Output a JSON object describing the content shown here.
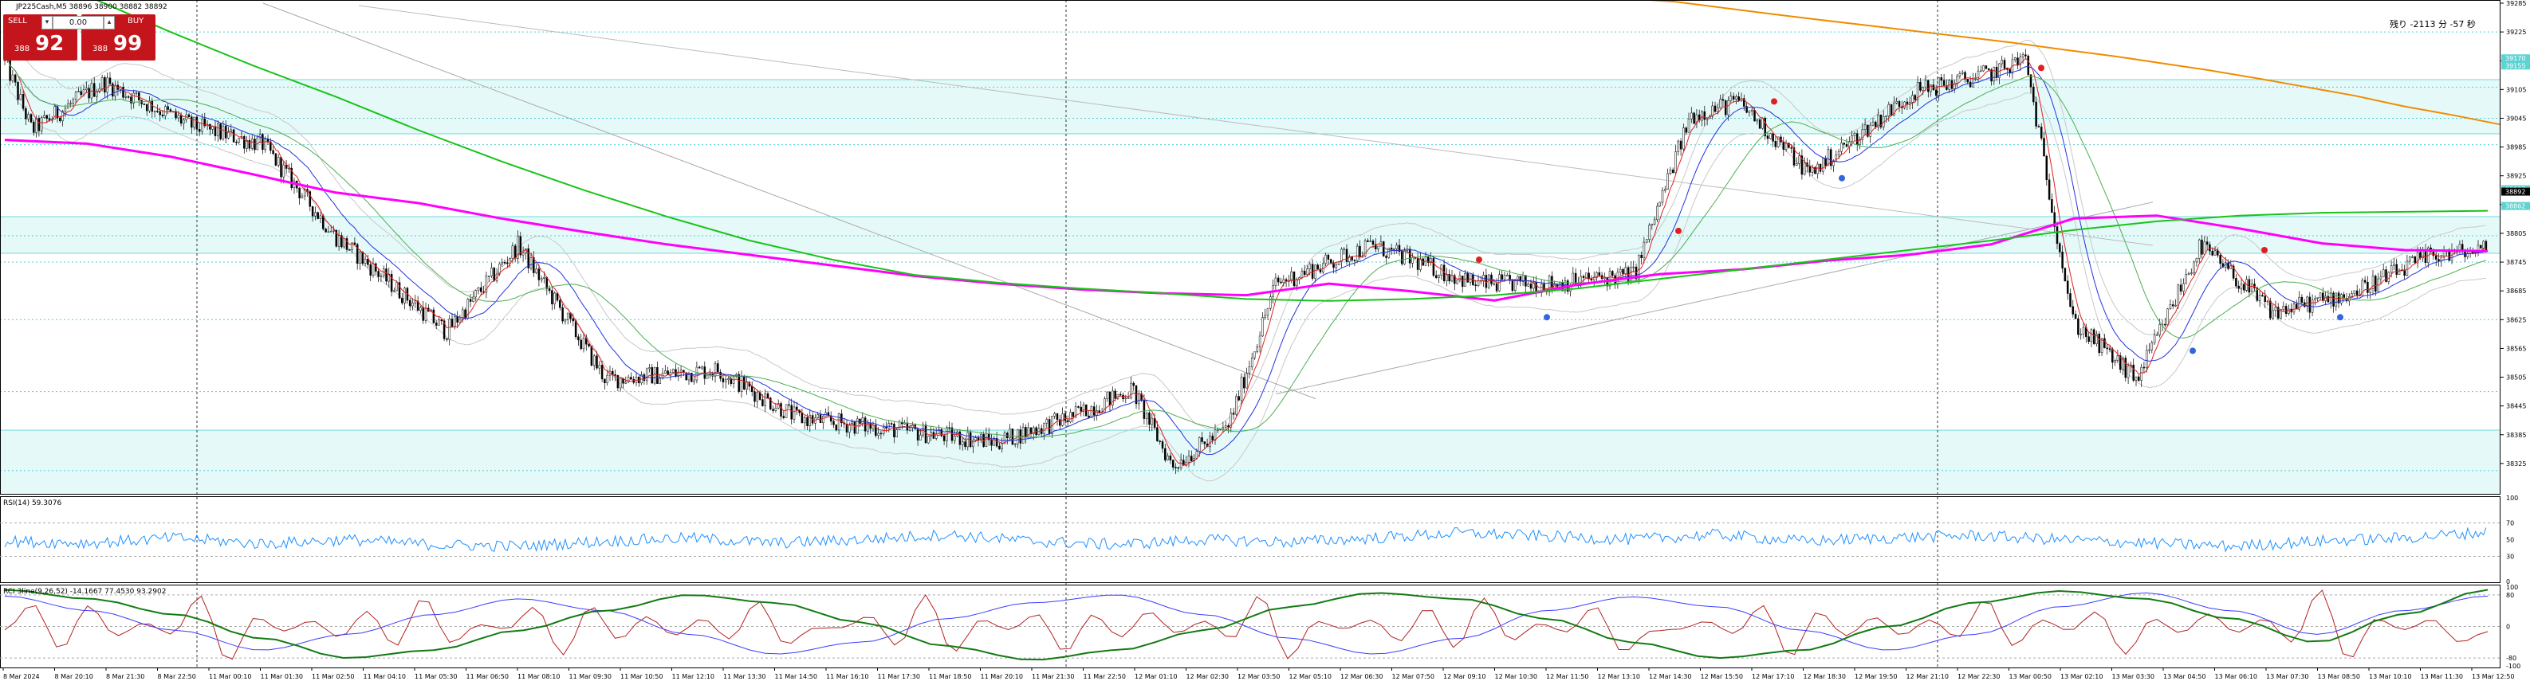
{
  "header": {
    "symbol_info": "JP225Cash,M5  38896 38900 38882 38892",
    "countdown": "残り -2113 分 -57 秒"
  },
  "trade_panel": {
    "sell_label": "SELL",
    "buy_label": "BUY",
    "lot": "0.00",
    "sell_prefix": "388",
    "sell_big": "92",
    "buy_prefix": "388",
    "buy_big": "99",
    "arrow_down": "▾",
    "arrow_up": "▴"
  },
  "chart_data": [
    {
      "type": "line",
      "title": "JP225Cash,M5  38896 38900 38882 38892",
      "panel": "price",
      "ylim": [
        38265,
        39285
      ],
      "y_ticks": [
        39285,
        39225,
        39165,
        39105,
        39045,
        38985,
        38925,
        38865,
        38805,
        38745,
        38685,
        38625,
        38565,
        38505,
        38445,
        38385,
        38325
      ],
      "last_price": 38892,
      "highlighted_levels": [
        39170,
        39155,
        38897,
        38862
      ],
      "grid": false,
      "series": [
        {
          "color": "#ff00ff",
          "values": [
            39000,
            38992,
            38965,
            38928,
            38890,
            38868,
            38836,
            38808,
            38782,
            38760,
            38738,
            38716,
            38700,
            38688,
            38680,
            38676,
            38700,
            38684,
            38665,
            38698,
            38720,
            38730,
            38748,
            38760,
            38782,
            38836,
            38842,
            38815,
            38784,
            38770,
            38768
          ]
        },
        {
          "color": "#18c318",
          "values": [
            39380,
            39300,
            39225,
            39155,
            39090,
            39020,
            38955,
            38895,
            38840,
            38790,
            38750,
            38718,
            38702,
            38690,
            38680,
            38668,
            38664,
            38668,
            38676,
            38690,
            38710,
            38730,
            38750,
            38770,
            38790,
            38812,
            38830,
            38842,
            38848,
            38850,
            38852
          ]
        },
        {
          "color": "#f08c00",
          "values": [
            39300,
            39295,
            39288,
            39275,
            39262,
            39250,
            39238,
            39226,
            39214,
            39202,
            39188,
            39175,
            39160,
            39145,
            39128,
            39110,
            39092,
            39070,
            39052,
            39032
          ]
        }
      ]
    },
    {
      "type": "line",
      "title": "RSI(14) 59.3076",
      "panel": "rsi",
      "ylim": [
        0,
        100
      ],
      "y_ticks": [
        100,
        70,
        50,
        30,
        0
      ],
      "series": [
        {
          "color": "#1e90ff",
          "values": [
            48,
            46,
            52,
            45,
            50,
            44,
            42,
            48,
            52,
            46,
            50,
            56,
            48,
            44,
            50,
            47,
            52,
            58,
            54,
            50,
            56,
            48,
            52,
            55,
            50,
            46,
            42,
            48,
            52,
            59
          ]
        }
      ]
    },
    {
      "type": "line",
      "title": "RCI 3line(9,26,52) -14.1667 77.4530 93.2902",
      "panel": "rci",
      "ylim": [
        -100,
        100
      ],
      "y_ticks": [
        100,
        80,
        0,
        -80,
        -100
      ],
      "series": [
        {
          "color": "#b22222",
          "values": [
            -14,
            60,
            -60,
            80,
            -80,
            40,
            -40,
            90,
            -90,
            30,
            -30,
            70,
            -70,
            50,
            -50,
            85,
            -85,
            20,
            -20,
            75,
            -75,
            55,
            -55,
            95,
            -95,
            35,
            -35,
            65,
            -65,
            -14
          ]
        },
        {
          "color": "#3c3cff",
          "values": [
            77,
            40,
            -10,
            -60,
            -20,
            30,
            70,
            40,
            -20,
            -70,
            -40,
            20,
            60,
            80,
            30,
            -30,
            -70,
            -30,
            40,
            75,
            50,
            -10,
            -60,
            -20,
            50,
            85,
            40,
            -20,
            40,
            77
          ]
        },
        {
          "color": "#137a13",
          "values": [
            93,
            70,
            30,
            -30,
            -80,
            -60,
            -10,
            40,
            80,
            60,
            10,
            -50,
            -85,
            -60,
            -10,
            50,
            85,
            70,
            20,
            -40,
            -80,
            -60,
            0,
            60,
            90,
            70,
            20,
            -40,
            30,
            93
          ]
        }
      ]
    }
  ],
  "time_axis": [
    "8 Mar 2024",
    "8 Mar 20:10",
    "8 Mar 21:30",
    "8 Mar 22:50",
    "11 Mar 00:10",
    "11 Mar 01:30",
    "11 Mar 02:50",
    "11 Mar 04:10",
    "11 Mar 05:30",
    "11 Mar 06:50",
    "11 Mar 08:10",
    "11 Mar 09:30",
    "11 Mar 10:50",
    "11 Mar 12:10",
    "11 Mar 13:30",
    "11 Mar 14:50",
    "11 Mar 16:10",
    "11 Mar 17:30",
    "11 Mar 18:50",
    "11 Mar 20:10",
    "11 Mar 21:30",
    "11 Mar 22:50",
    "12 Mar 01:10",
    "12 Mar 02:30",
    "12 Mar 03:50",
    "12 Mar 05:10",
    "12 Mar 06:30",
    "12 Mar 07:50",
    "12 Mar 09:10",
    "12 Mar 10:30",
    "12 Mar 11:50",
    "12 Mar 13:10",
    "12 Mar 14:30",
    "12 Mar 15:50",
    "12 Mar 17:10",
    "12 Mar 18:30",
    "12 Mar 19:50",
    "12 Mar 21:10",
    "12 Mar 22:30",
    "13 Mar 00:50",
    "13 Mar 02:10",
    "13 Mar 03:30",
    "13 Mar 04:50",
    "13 Mar 06:10",
    "13 Mar 07:30",
    "13 Mar 08:50",
    "13 Mar 10:10",
    "13 Mar 11:30",
    "13 Mar 12:50"
  ]
}
